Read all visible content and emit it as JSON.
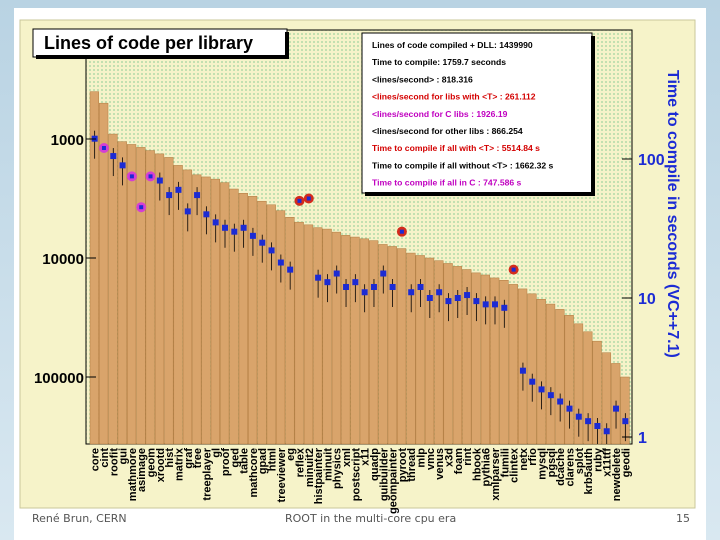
{
  "footer": {
    "left": "René Brun, CERN",
    "center": "ROOT in the multi-core cpu era",
    "right": "15"
  },
  "colors": {
    "canvas_bg": "#f6f3c9",
    "dots": "#9fd39f",
    "bar_fill": "#d9a46b",
    "bar_stroke": "#b07a3f",
    "marker_blue": "#1c2bd4",
    "marker_magenta": "#d43fd4",
    "marker_red": "#d42b1c",
    "text_red": "#d40000",
    "text_magenta": "#c000c0"
  },
  "chart_data": {
    "type": "bar",
    "title": "Lines of code per library",
    "ylabel_right": "Time to compile in seconds (VC++7.1)",
    "ylim_left": [
      500,
      250000
    ],
    "ylim_right": [
      1,
      250
    ],
    "yscale": "log",
    "left_ticks": [
      "100000",
      "10000",
      "1000"
    ],
    "right_ticks": [
      "100",
      "10",
      "1"
    ],
    "grid": false,
    "categories": [
      "core",
      "cint",
      "roofit",
      "gui",
      "mathmore",
      "asimage",
      "geom",
      "xrootd",
      "hist",
      "matrix",
      "graf",
      "tree",
      "treeplayer",
      "gl",
      "proof",
      "ged",
      "table",
      "mathcore",
      "gpad",
      "html",
      "treeviewer",
      "eg",
      "reflex",
      "minuit2",
      "histpainter",
      "minuit",
      "physics",
      "xml",
      "postscript",
      "x11",
      "quadp",
      "guibuilder",
      "geompainter",
      "pyroot",
      "thread",
      "mlp",
      "vmc",
      "venus",
      "x3d",
      "foam",
      "rint",
      "hbook",
      "pythia6",
      "xmlparser",
      "fumili",
      "clintex",
      "netx",
      "rfio",
      "mysql",
      "pgsql",
      "dcache",
      "clarens",
      "splot",
      "krb5auth",
      "ruby",
      "x11ttf",
      "newdelete",
      "geodi"
    ],
    "series": [
      {
        "values": [
          250000,
          200000,
          110000,
          95000,
          90000,
          85000,
          80000,
          75000,
          70000,
          60000,
          55000,
          50000,
          48000,
          46000,
          43000,
          38000,
          35000,
          33000,
          30000,
          28000,
          25000,
          22000,
          20000,
          19000,
          18000,
          17500,
          16500,
          15500,
          15000,
          14500,
          14000,
          13000,
          12500,
          12000,
          11000,
          10500,
          10000,
          9500,
          9000,
          8500,
          8000,
          7500,
          7200,
          6800,
          6500,
          6000,
          5500,
          5000,
          4500,
          4100,
          3700,
          3300,
          2800,
          2400,
          2000,
          1600,
          1300,
          1000
        ]
      }
    ],
    "time_markers": [
      {
        "category": "core",
        "t": 140,
        "kind": "blue",
        "err": 0
      },
      {
        "category": "cint",
        "t": 120,
        "kind": "magenta",
        "err": 0
      },
      {
        "category": "roofit",
        "t": 105,
        "kind": "blue",
        "err": 0
      },
      {
        "category": "gui",
        "t": 90,
        "kind": "blue",
        "err": 0
      },
      {
        "category": "mathmore",
        "t": 75,
        "kind": "magenta",
        "err": 0
      },
      {
        "category": "asimage",
        "t": 45,
        "kind": "magenta",
        "err": 0
      },
      {
        "category": "geom",
        "t": 75,
        "kind": "magenta",
        "err": 0
      },
      {
        "category": "xrootd",
        "t": 70,
        "kind": "blue",
        "err": 0
      },
      {
        "category": "hist",
        "t": 55,
        "kind": "blue",
        "err": 0
      },
      {
        "category": "matrix",
        "t": 60,
        "kind": "blue",
        "err": 0
      },
      {
        "category": "graf",
        "t": 42,
        "kind": "blue",
        "err": 0
      },
      {
        "category": "tree",
        "t": 55,
        "kind": "blue",
        "err": 0
      },
      {
        "category": "treeplayer",
        "t": 40,
        "kind": "blue",
        "err": 0
      },
      {
        "category": "gl",
        "t": 35,
        "kind": "blue",
        "err": 0
      },
      {
        "category": "proof",
        "t": 32,
        "kind": "blue",
        "err": 0
      },
      {
        "category": "ged",
        "t": 30,
        "kind": "blue",
        "err": 0
      },
      {
        "category": "table",
        "t": 32,
        "kind": "blue",
        "err": 0
      },
      {
        "category": "mathcore",
        "t": 28,
        "kind": "blue",
        "err": 0
      },
      {
        "category": "gpad",
        "t": 25,
        "kind": "blue",
        "err": 0
      },
      {
        "category": "html",
        "t": 22,
        "kind": "blue",
        "err": 0
      },
      {
        "category": "treeviewer",
        "t": 18,
        "kind": "blue",
        "err": 0
      },
      {
        "category": "eg",
        "t": 16,
        "kind": "blue",
        "err": 0
      },
      {
        "category": "reflex",
        "t": 50,
        "kind": "red",
        "err": 0
      },
      {
        "category": "minuit2",
        "t": 52,
        "kind": "red",
        "err": 0
      },
      {
        "category": "histpainter",
        "t": 14,
        "kind": "blue",
        "err": 0
      },
      {
        "category": "minuit",
        "t": 13,
        "kind": "blue",
        "err": 0
      },
      {
        "category": "physics",
        "t": 15,
        "kind": "blue",
        "err": 0
      },
      {
        "category": "xml",
        "t": 12,
        "kind": "blue",
        "err": 0
      },
      {
        "category": "postscript",
        "t": 13,
        "kind": "blue",
        "err": 0
      },
      {
        "category": "x11",
        "t": 11,
        "kind": "blue",
        "err": 0
      },
      {
        "category": "quadp",
        "t": 12,
        "kind": "blue",
        "err": 0
      },
      {
        "category": "guibuilder",
        "t": 15,
        "kind": "blue",
        "err": 0
      },
      {
        "category": "geompainter",
        "t": 12,
        "kind": "blue",
        "err": 0
      },
      {
        "category": "pyroot",
        "t": 30,
        "kind": "red",
        "err": 0
      },
      {
        "category": "thread",
        "t": 11,
        "kind": "blue",
        "err": 0
      },
      {
        "category": "mlp",
        "t": 12,
        "kind": "blue",
        "err": 0
      },
      {
        "category": "vmc",
        "t": 10,
        "kind": "blue",
        "err": 0
      },
      {
        "category": "venus",
        "t": 11,
        "kind": "blue",
        "err": 0
      },
      {
        "category": "x3d",
        "t": 9.5,
        "kind": "blue",
        "err": 0
      },
      {
        "category": "foam",
        "t": 10,
        "kind": "blue",
        "err": 0
      },
      {
        "category": "rint",
        "t": 10.5,
        "kind": "blue",
        "err": 0
      },
      {
        "category": "hbook",
        "t": 9.5,
        "kind": "blue",
        "err": 0
      },
      {
        "category": "pythia6",
        "t": 9,
        "kind": "blue",
        "err": 0
      },
      {
        "category": "xmlparser",
        "t": 9,
        "kind": "blue",
        "err": 0
      },
      {
        "category": "fumili",
        "t": 8.5,
        "kind": "blue",
        "err": 0
      },
      {
        "category": "clintex",
        "t": 16,
        "kind": "red",
        "err": 0
      },
      {
        "category": "netx",
        "t": 3,
        "kind": "blue",
        "err": 0
      },
      {
        "category": "rfio",
        "t": 2.5,
        "kind": "blue",
        "err": 0
      },
      {
        "category": "mysql",
        "t": 2.2,
        "kind": "blue",
        "err": 0
      },
      {
        "category": "pgsql",
        "t": 2,
        "kind": "blue",
        "err": 0
      },
      {
        "category": "dcache",
        "t": 1.8,
        "kind": "blue",
        "err": 0
      },
      {
        "category": "clarens",
        "t": 1.6,
        "kind": "blue",
        "err": 0
      },
      {
        "category": "splot",
        "t": 1.4,
        "kind": "blue",
        "err": 0
      },
      {
        "category": "krb5auth",
        "t": 1.3,
        "kind": "blue",
        "err": 0
      },
      {
        "category": "ruby",
        "t": 1.2,
        "kind": "blue",
        "err": 0
      },
      {
        "category": "x11ttf",
        "t": 1.1,
        "kind": "blue",
        "err": 0
      },
      {
        "category": "newdelete",
        "t": 1.6,
        "kind": "blue",
        "err": 0
      },
      {
        "category": "geodi",
        "t": 1.3,
        "kind": "blue",
        "err": 0
      }
    ],
    "info_box": [
      {
        "text": "Lines of code compiled + DLL: 1439990",
        "color": "black"
      },
      {
        "text": "Time to compile: 1759.7 seconds",
        "color": "black"
      },
      {
        "text": "<lines/second> : 818.316",
        "color": "black"
      },
      {
        "text": "<lines/second for libs with <T> : 261.112",
        "color": "red"
      },
      {
        "text": "<lines/second for C libs : 1926.19",
        "color": "magenta"
      },
      {
        "text": "<lines/second for other libs   : 866.254",
        "color": "black"
      },
      {
        "text": "Time to compile if all with    <T> : 5514.84 s",
        "color": "red"
      },
      {
        "text": "Time to compile if all without <T> : 1662.32 s",
        "color": "black"
      },
      {
        "text": "Time to compile if all in C : 747.586 s",
        "color": "magenta"
      }
    ]
  }
}
